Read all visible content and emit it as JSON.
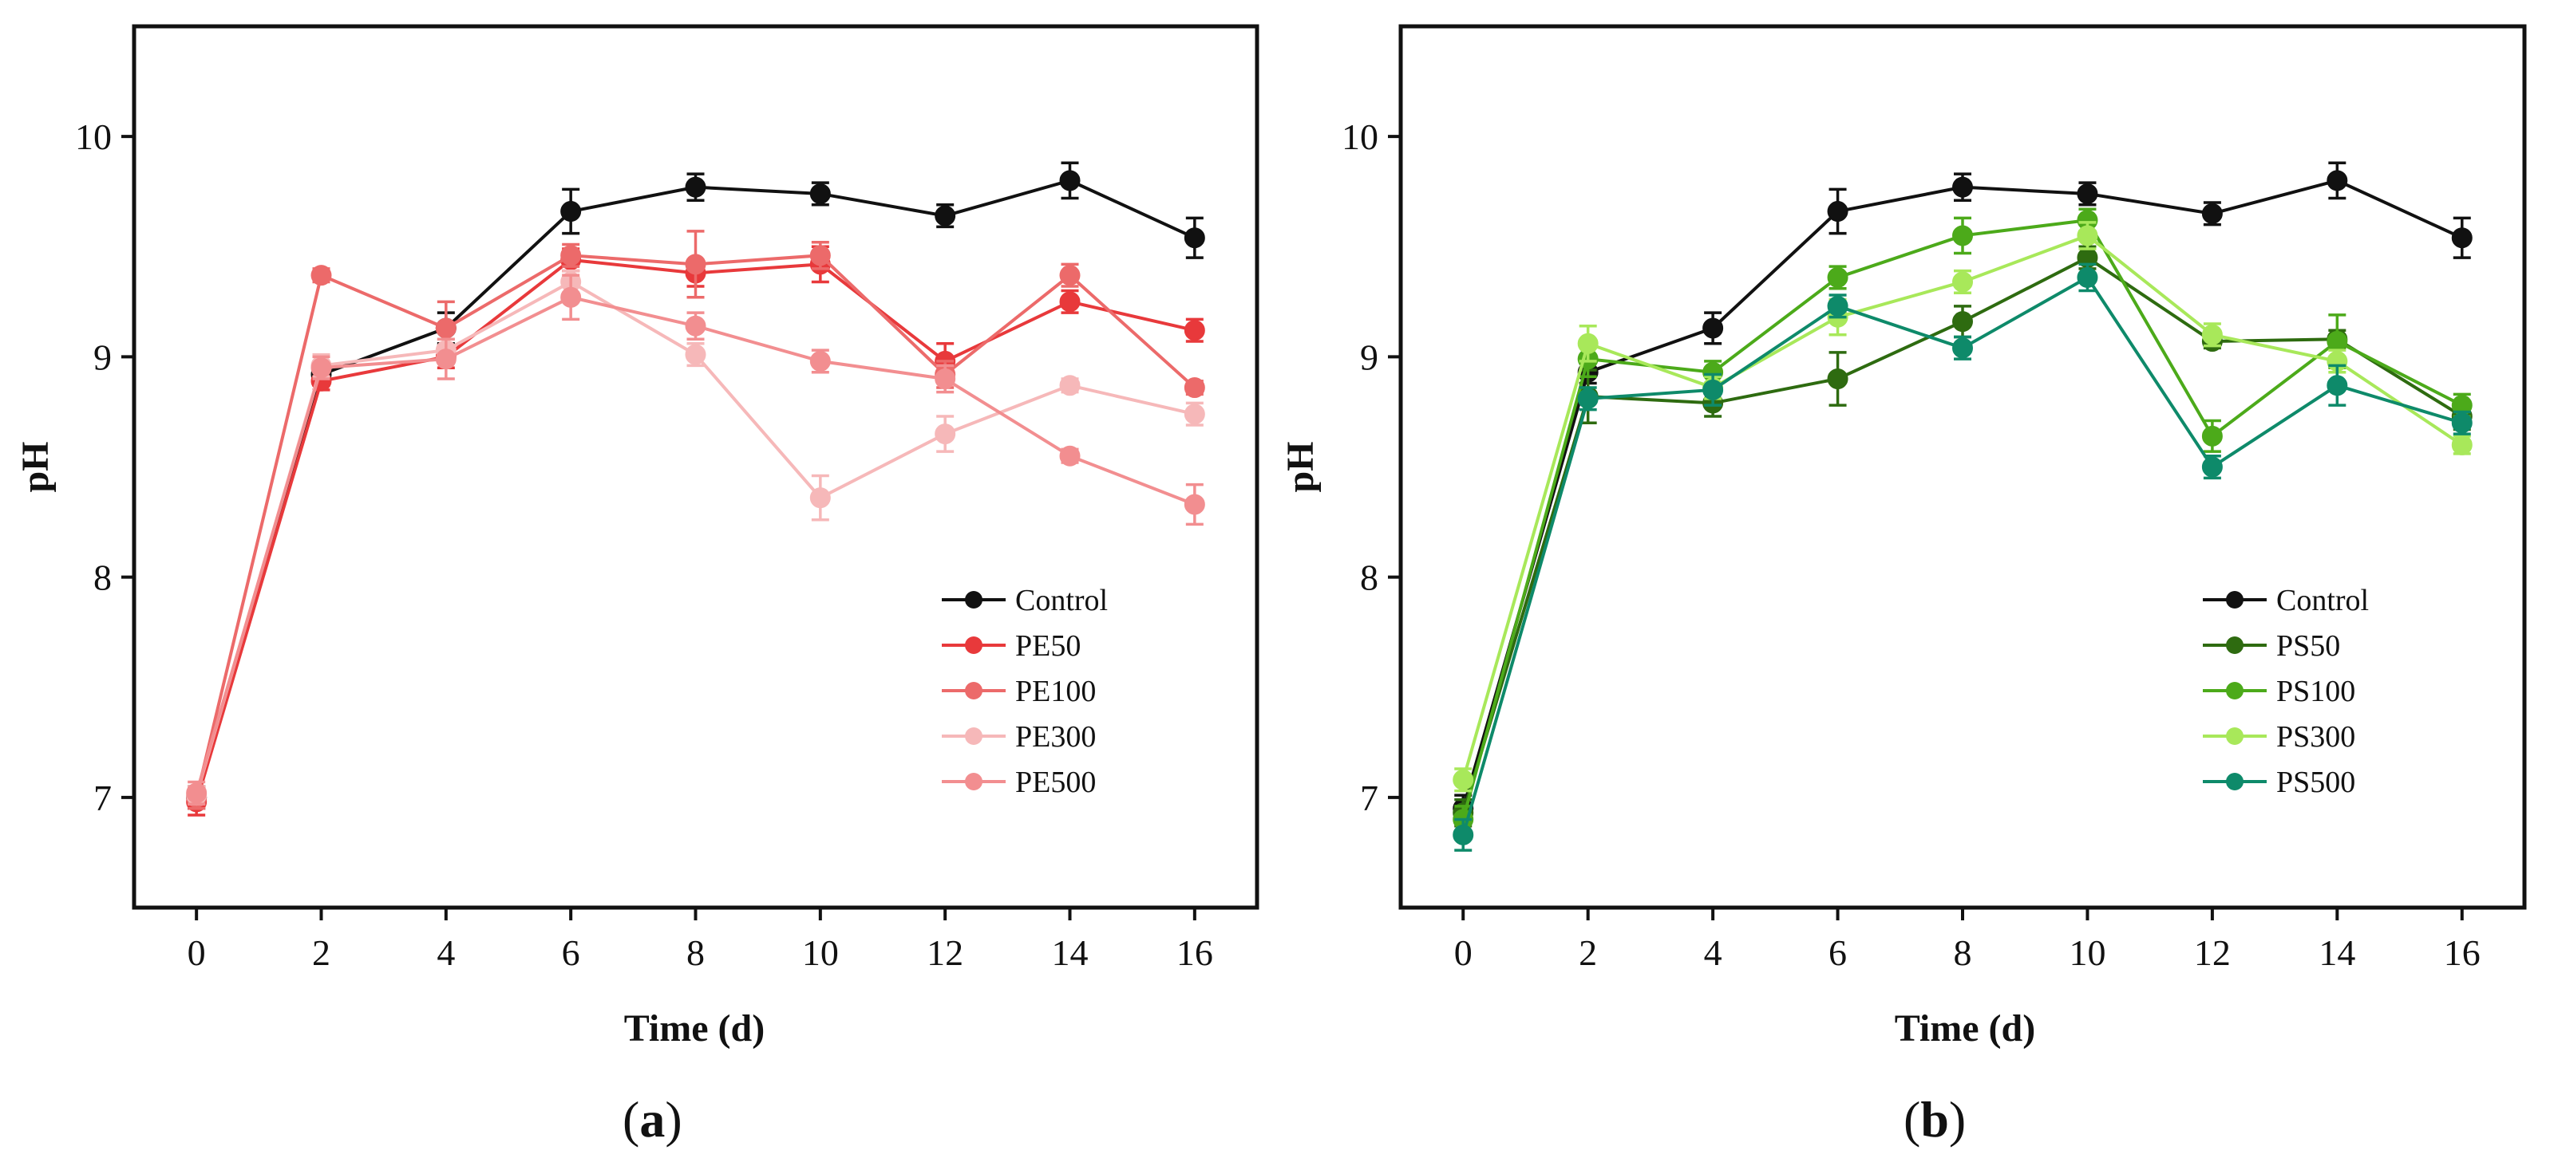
{
  "chart_data": [
    {
      "type": "line",
      "panel_label": "a",
      "xlabel": "Time (d)",
      "ylabel": "pH",
      "xlim": [
        -1,
        17
      ],
      "ylim": [
        6.5,
        10.5
      ],
      "xticks": [
        0,
        2,
        4,
        6,
        8,
        10,
        12,
        14,
        16
      ],
      "yticks": [
        7,
        8,
        9,
        10
      ],
      "grid": false,
      "legend_position": "bottom-right",
      "x": [
        0,
        2,
        4,
        6,
        8,
        10,
        12,
        14,
        16
      ],
      "series": [
        {
          "name": "Control",
          "color": "#111111",
          "values": [
            7.0,
            8.92,
            9.13,
            9.66,
            9.77,
            9.74,
            9.64,
            9.8,
            9.54
          ],
          "errors": [
            0.05,
            0.05,
            0.07,
            0.1,
            0.06,
            0.05,
            0.05,
            0.08,
            0.09
          ]
        },
        {
          "name": "PE50",
          "color": "#e8393b",
          "values": [
            6.98,
            8.89,
            9.0,
            9.44,
            9.38,
            9.42,
            8.98,
            9.25,
            9.12
          ],
          "errors": [
            0.06,
            0.04,
            0.05,
            0.05,
            0.06,
            0.08,
            0.08,
            0.05,
            0.05
          ]
        },
        {
          "name": "PE100",
          "color": "#ec6a6a",
          "values": [
            7.0,
            9.37,
            9.13,
            9.46,
            9.42,
            9.46,
            8.92,
            9.37,
            8.86
          ],
          "errors": [
            0.05,
            0.03,
            0.12,
            0.05,
            0.15,
            0.06,
            0.06,
            0.05,
            0.03
          ]
        },
        {
          "name": "PE300",
          "color": "#f6b8b9",
          "values": [
            7.01,
            8.96,
            9.03,
            9.34,
            9.01,
            8.36,
            8.65,
            8.87,
            8.74
          ],
          "errors": [
            0.04,
            0.05,
            0.05,
            0.05,
            0.05,
            0.1,
            0.08,
            0.03,
            0.05
          ]
        },
        {
          "name": "PE500",
          "color": "#f28e90",
          "values": [
            7.02,
            8.95,
            8.99,
            9.27,
            9.14,
            8.98,
            8.9,
            8.55,
            8.33
          ],
          "errors": [
            0.05,
            0.05,
            0.09,
            0.1,
            0.06,
            0.05,
            0.06,
            0.03,
            0.09
          ]
        }
      ]
    },
    {
      "type": "line",
      "panel_label": "b",
      "xlabel": "Time (d)",
      "ylabel": "pH",
      "xlim": [
        -1,
        17
      ],
      "ylim": [
        6.5,
        10.5
      ],
      "xticks": [
        0,
        2,
        4,
        6,
        8,
        10,
        12,
        14,
        16
      ],
      "yticks": [
        7,
        8,
        9,
        10
      ],
      "grid": false,
      "legend_position": "bottom-right",
      "x": [
        0,
        2,
        4,
        6,
        8,
        10,
        12,
        14,
        16
      ],
      "series": [
        {
          "name": "Control",
          "color": "#111111",
          "values": [
            6.95,
            8.93,
            9.13,
            9.66,
            9.77,
            9.74,
            9.65,
            9.8,
            9.54
          ],
          "errors": [
            0.06,
            0.05,
            0.07,
            0.1,
            0.06,
            0.05,
            0.05,
            0.08,
            0.09
          ]
        },
        {
          "name": "PS50",
          "color": "#2e6b10",
          "values": [
            6.93,
            8.82,
            8.79,
            8.9,
            9.16,
            9.45,
            9.07,
            9.08,
            8.73
          ],
          "errors": [
            0.06,
            0.12,
            0.06,
            0.12,
            0.07,
            0.05,
            0.03,
            0.04,
            0.06
          ]
        },
        {
          "name": "PS100",
          "color": "#4caa1a",
          "values": [
            6.9,
            8.99,
            8.93,
            9.36,
            9.55,
            9.62,
            8.64,
            9.07,
            8.78
          ],
          "errors": [
            0.06,
            0.08,
            0.05,
            0.05,
            0.08,
            0.05,
            0.07,
            0.12,
            0.05
          ]
        },
        {
          "name": "PS300",
          "color": "#a8e85a",
          "values": [
            7.08,
            9.06,
            8.86,
            9.18,
            9.34,
            9.55,
            9.1,
            8.98,
            8.6
          ],
          "errors": [
            0.05,
            0.08,
            0.05,
            0.08,
            0.05,
            0.06,
            0.05,
            0.05,
            0.04
          ]
        },
        {
          "name": "PS500",
          "color": "#0e8a6a",
          "values": [
            6.83,
            8.81,
            8.85,
            9.23,
            9.04,
            9.36,
            8.5,
            8.87,
            8.7
          ],
          "errors": [
            0.07,
            0.05,
            0.07,
            0.05,
            0.05,
            0.06,
            0.05,
            0.09,
            0.05
          ]
        }
      ]
    }
  ]
}
